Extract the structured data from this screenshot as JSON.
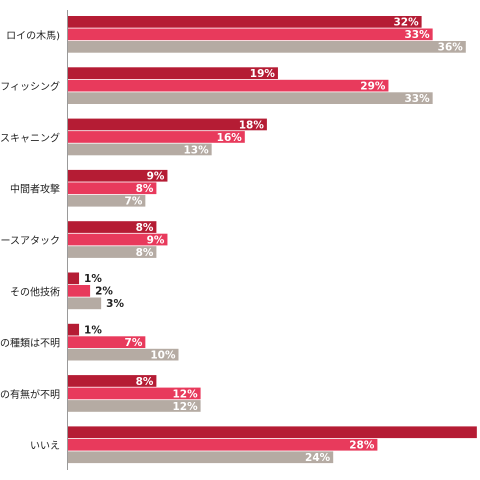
{
  "chart_data": {
    "type": "bar",
    "orientation": "horizontal",
    "grouped": true,
    "title": "",
    "xlabel": "",
    "ylabel": "",
    "xlim": [
      0,
      40
    ],
    "grid": false,
    "legend": "none",
    "categories": [
      "ロイの木馬)",
      "フィッシング",
      "スキャニング",
      "中間者攻撃",
      "ースアタック",
      "その他技術",
      "の種類は不明",
      "の有無が不明",
      "いいえ"
    ],
    "series": [
      {
        "color": "#b51c34",
        "values": [
          32,
          19,
          18,
          9,
          8,
          1,
          1,
          8,
          37
        ],
        "labels": [
          "32%",
          "19%",
          "18%",
          "9%",
          "8%",
          "1%",
          "1%",
          "8%",
          ""
        ]
      },
      {
        "color": "#e83a5c",
        "values": [
          33,
          29,
          16,
          8,
          9,
          2,
          7,
          12,
          28
        ],
        "labels": [
          "33%",
          "29%",
          "16%",
          "8%",
          "9%",
          "2%",
          "7%",
          "12%",
          "28%"
        ]
      },
      {
        "color": "#b5aba3",
        "values": [
          36,
          33,
          13,
          7,
          8,
          3,
          10,
          12,
          24
        ],
        "labels": [
          "36%",
          "33%",
          "13%",
          "7%",
          "8%",
          "3%",
          "10%",
          "12%",
          "24%"
        ]
      }
    ]
  }
}
